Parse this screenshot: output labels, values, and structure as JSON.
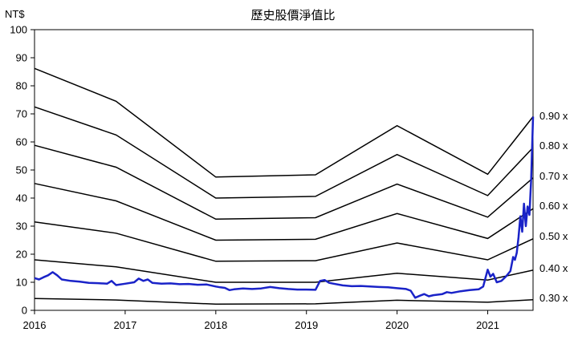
{
  "chart_data": {
    "type": "line",
    "title": "歷史股價淨值比",
    "ylabel": "NT$",
    "xlabel": "",
    "xlim": [
      2016,
      2021.5
    ],
    "ylim": [
      0,
      100
    ],
    "x_ticks": [
      "2016",
      "2017",
      "2018",
      "2019",
      "2020",
      "2021"
    ],
    "y_ticks": [
      "0",
      "10",
      "20",
      "30",
      "40",
      "50",
      "60",
      "70",
      "80",
      "90",
      "100"
    ],
    "grid": false,
    "legend": "none",
    "colors": {
      "bands": "#000000",
      "price": "#1a23c8",
      "axis": "#000000"
    },
    "band_lines": [
      {
        "label": "0.30 x",
        "points": [
          [
            2016.0,
            4.2
          ],
          [
            2016.9,
            3.7
          ],
          [
            2018.0,
            2.2
          ],
          [
            2019.1,
            2.3
          ],
          [
            2020.0,
            3.6
          ],
          [
            2021.0,
            2.9
          ],
          [
            2021.5,
            3.8
          ]
        ]
      },
      {
        "label": "0.40 x",
        "points": [
          [
            2016.0,
            18.0
          ],
          [
            2016.9,
            15.5
          ],
          [
            2018.0,
            10.0
          ],
          [
            2019.1,
            10.0
          ],
          [
            2020.0,
            13.2
          ],
          [
            2021.0,
            10.8
          ],
          [
            2021.5,
            14.3
          ]
        ]
      },
      {
        "label": "0.50 x",
        "points": [
          [
            2016.0,
            31.5
          ],
          [
            2016.9,
            27.5
          ],
          [
            2018.0,
            17.5
          ],
          [
            2019.1,
            17.7
          ],
          [
            2020.0,
            24.0
          ],
          [
            2021.0,
            18.0
          ],
          [
            2021.5,
            25.5
          ]
        ]
      },
      {
        "label": "0.60 x",
        "points": [
          [
            2016.0,
            45.2
          ],
          [
            2016.9,
            39.0
          ],
          [
            2018.0,
            25.0
          ],
          [
            2019.1,
            25.3
          ],
          [
            2020.0,
            34.5
          ],
          [
            2021.0,
            25.6
          ],
          [
            2021.5,
            36.2
          ]
        ]
      },
      {
        "label": "0.70 x",
        "points": [
          [
            2016.0,
            58.8
          ],
          [
            2016.9,
            51.0
          ],
          [
            2018.0,
            32.5
          ],
          [
            2019.1,
            33.0
          ],
          [
            2020.0,
            45.0
          ],
          [
            2021.0,
            33.2
          ],
          [
            2021.5,
            47.2
          ]
        ]
      },
      {
        "label": "0.80 x",
        "points": [
          [
            2016.0,
            72.5
          ],
          [
            2016.9,
            62.5
          ],
          [
            2018.0,
            40.0
          ],
          [
            2019.1,
            40.6
          ],
          [
            2020.0,
            55.5
          ],
          [
            2021.0,
            40.9
          ],
          [
            2021.5,
            58.0
          ]
        ]
      },
      {
        "label": "0.90 x",
        "points": [
          [
            2016.0,
            86.2
          ],
          [
            2016.9,
            74.5
          ],
          [
            2018.0,
            47.5
          ],
          [
            2019.1,
            48.3
          ],
          [
            2020.0,
            65.8
          ],
          [
            2021.0,
            48.5
          ],
          [
            2021.5,
            69.0
          ]
        ]
      }
    ],
    "price_series": {
      "points": [
        [
          2016.0,
          11.5
        ],
        [
          2016.05,
          11.0
        ],
        [
          2016.1,
          11.8
        ],
        [
          2016.15,
          12.5
        ],
        [
          2016.2,
          13.6
        ],
        [
          2016.25,
          12.5
        ],
        [
          2016.3,
          11.0
        ],
        [
          2016.4,
          10.5
        ],
        [
          2016.5,
          10.2
        ],
        [
          2016.6,
          9.8
        ],
        [
          2016.7,
          9.7
        ],
        [
          2016.8,
          9.5
        ],
        [
          2016.85,
          10.5
        ],
        [
          2016.9,
          9.0
        ],
        [
          2017.0,
          9.5
        ],
        [
          2017.1,
          10.0
        ],
        [
          2017.15,
          11.3
        ],
        [
          2017.2,
          10.5
        ],
        [
          2017.25,
          11.0
        ],
        [
          2017.3,
          9.8
        ],
        [
          2017.4,
          9.5
        ],
        [
          2017.5,
          9.6
        ],
        [
          2017.6,
          9.3
        ],
        [
          2017.7,
          9.4
        ],
        [
          2017.8,
          9.1
        ],
        [
          2017.9,
          9.2
        ],
        [
          2018.0,
          8.5
        ],
        [
          2018.05,
          8.2
        ],
        [
          2018.1,
          8.0
        ],
        [
          2018.15,
          7.2
        ],
        [
          2018.2,
          7.5
        ],
        [
          2018.3,
          7.8
        ],
        [
          2018.4,
          7.6
        ],
        [
          2018.5,
          7.8
        ],
        [
          2018.6,
          8.3
        ],
        [
          2018.7,
          7.9
        ],
        [
          2018.8,
          7.6
        ],
        [
          2018.9,
          7.4
        ],
        [
          2019.0,
          7.4
        ],
        [
          2019.1,
          7.3
        ],
        [
          2019.15,
          10.5
        ],
        [
          2019.2,
          10.8
        ],
        [
          2019.25,
          9.8
        ],
        [
          2019.3,
          9.5
        ],
        [
          2019.4,
          8.9
        ],
        [
          2019.5,
          8.6
        ],
        [
          2019.6,
          8.7
        ],
        [
          2019.7,
          8.5
        ],
        [
          2019.8,
          8.3
        ],
        [
          2019.9,
          8.2
        ],
        [
          2020.0,
          7.9
        ],
        [
          2020.1,
          7.6
        ],
        [
          2020.15,
          7.0
        ],
        [
          2020.2,
          4.5
        ],
        [
          2020.25,
          5.2
        ],
        [
          2020.3,
          5.8
        ],
        [
          2020.35,
          5.0
        ],
        [
          2020.4,
          5.4
        ],
        [
          2020.5,
          5.8
        ],
        [
          2020.55,
          6.5
        ],
        [
          2020.6,
          6.2
        ],
        [
          2020.7,
          6.8
        ],
        [
          2020.8,
          7.2
        ],
        [
          2020.9,
          7.5
        ],
        [
          2020.95,
          8.5
        ],
        [
          2021.0,
          14.5
        ],
        [
          2021.03,
          12.0
        ],
        [
          2021.06,
          13.0
        ],
        [
          2021.1,
          10.0
        ],
        [
          2021.15,
          10.5
        ],
        [
          2021.2,
          12.0
        ],
        [
          2021.25,
          14.0
        ],
        [
          2021.28,
          19.0
        ],
        [
          2021.3,
          18.0
        ],
        [
          2021.32,
          20.5
        ],
        [
          2021.34,
          26.0
        ],
        [
          2021.36,
          33.5
        ],
        [
          2021.38,
          28.0
        ],
        [
          2021.4,
          38.0
        ],
        [
          2021.42,
          30.0
        ],
        [
          2021.44,
          37.0
        ],
        [
          2021.46,
          34.0
        ],
        [
          2021.48,
          47.0
        ],
        [
          2021.5,
          69.0
        ]
      ]
    }
  }
}
